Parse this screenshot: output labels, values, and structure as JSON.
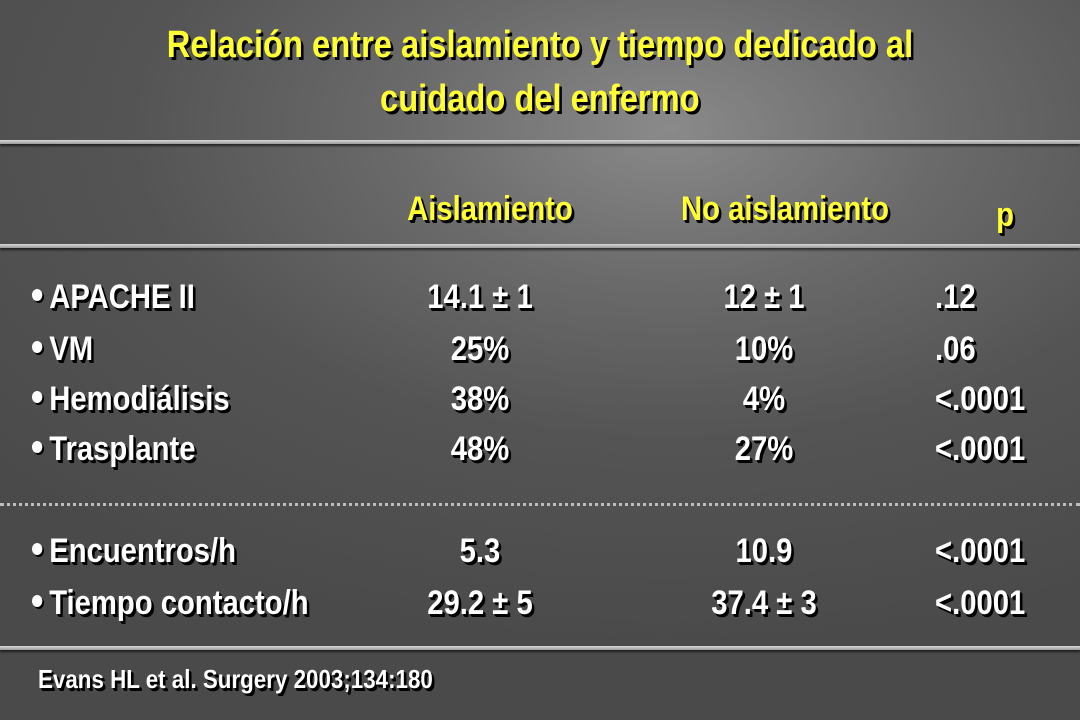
{
  "title": {
    "line1": "Relación entre aislamiento y tiempo dedicado al",
    "line2": "cuidado del enfermo"
  },
  "headers": {
    "col1": "Aislamiento",
    "col2": "No aislamiento",
    "col3": "p"
  },
  "rows": [
    {
      "label": "APACHE II",
      "a": "14.1 ± 1",
      "b": "12 ± 1",
      "p": ".12"
    },
    {
      "label": "VM",
      "a": "25%",
      "b": "10%",
      "p": ".06"
    },
    {
      "label": "Hemodiálisis",
      "a": "38%",
      "b": "4%",
      "p": "<.0001"
    },
    {
      "label": "Trasplante",
      "a": "48%",
      "b": "27%",
      "p": "<.0001"
    },
    {
      "label": "Encuentros/h",
      "a": "5.3",
      "b": "10.9",
      "p": "<.0001"
    },
    {
      "label": "Tiempo contacto/h",
      "a": "29.2 ± 5",
      "b": "37.4 ± 3",
      "p": "<.0001"
    }
  ],
  "citation": "Evans HL et al.  Surgery 2003;134:180",
  "colors": {
    "title": "#ffff33",
    "text": "#ffffff",
    "background": "#5a5a5a"
  }
}
